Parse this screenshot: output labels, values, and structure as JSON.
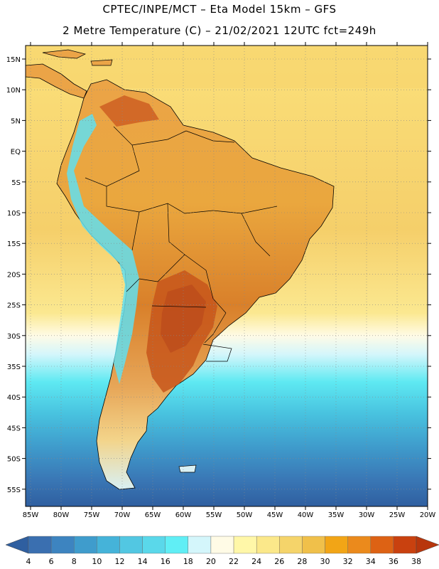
{
  "title": {
    "line1": "CPTEC/INPE/MCT –  Eta Model 15km – GFS",
    "line2": "2 Metre Temperature (C) – 21/02/2021 12UTC fct=249h"
  },
  "map": {
    "lat_labels": [
      "15N",
      "10N",
      "5N",
      "EQ",
      "5S",
      "10S",
      "15S",
      "20S",
      "25S",
      "30S",
      "35S",
      "40S",
      "45S",
      "50S",
      "55S"
    ],
    "lon_labels": [
      "85W",
      "80W",
      "75W",
      "70W",
      "65W",
      "60W",
      "55W",
      "50W",
      "45W",
      "40W",
      "35W",
      "30W",
      "25W",
      "20W"
    ],
    "lon_range": [
      -85,
      -20
    ],
    "lat_range": [
      -57,
      17
    ]
  },
  "colorbar": {
    "labels": [
      "4",
      "6",
      "8",
      "10",
      "12",
      "14",
      "16",
      "18",
      "20",
      "22",
      "24",
      "26",
      "28",
      "30",
      "32",
      "34",
      "36",
      "38"
    ],
    "colors": [
      "#3a6fb0",
      "#3d84c0",
      "#3f9ccc",
      "#45b3d9",
      "#52c7e2",
      "#5ad8ea",
      "#60eef5",
      "#d4f6fb",
      "#fffbe6",
      "#fff7a8",
      "#fbe88a",
      "#f5d46a",
      "#f0c04a",
      "#f2a516",
      "#eb8a1c",
      "#dd6214",
      "#c9410f"
    ],
    "low_arrow_color": "#2f5fa0",
    "high_arrow_color": "#b8360c"
  }
}
